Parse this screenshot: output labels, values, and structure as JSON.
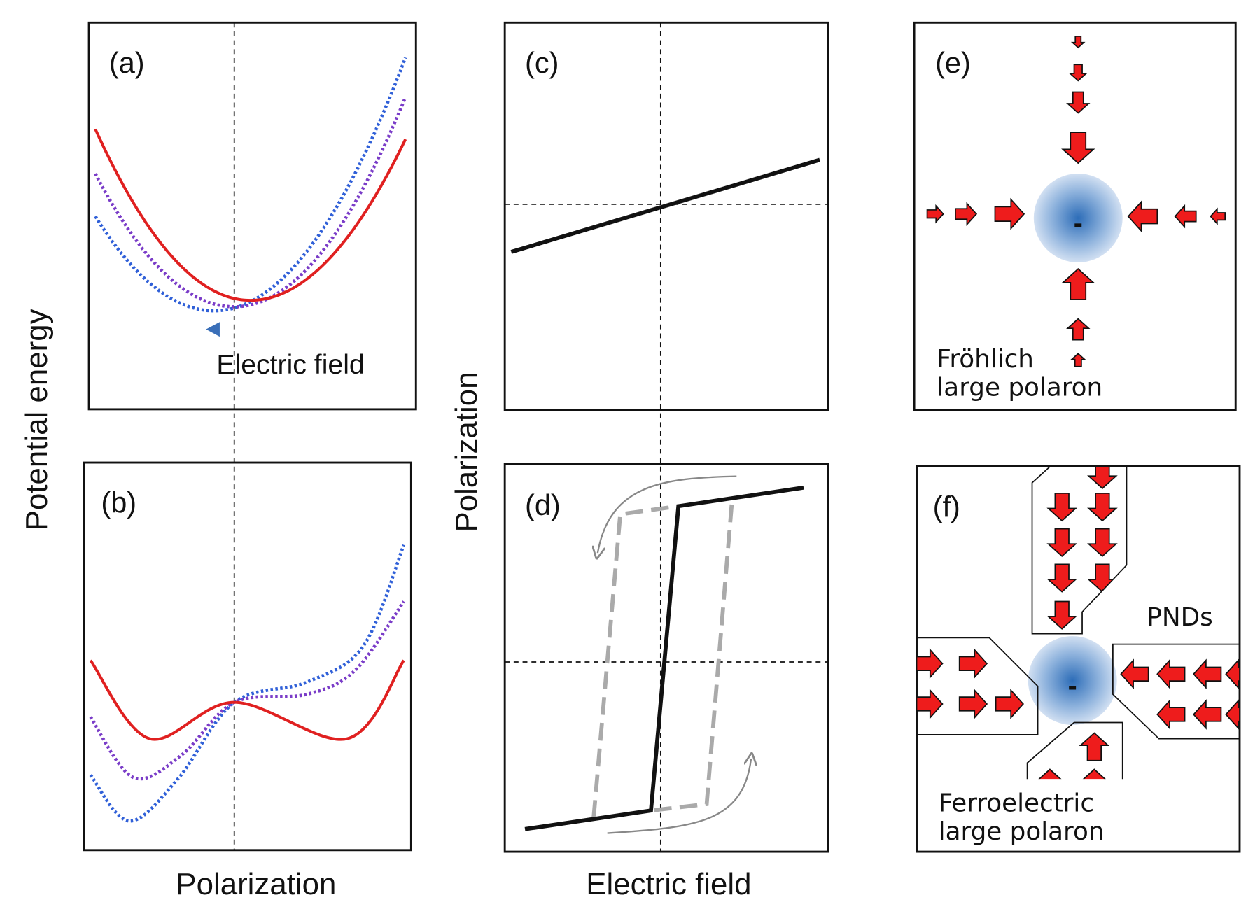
{
  "left_axes": {
    "y_label": "Potential energy",
    "x_label": "Polarization"
  },
  "middle_axes": {
    "y_label": "Polarization",
    "x_label": "Electric field"
  },
  "panels": {
    "a": {
      "label": "(a)",
      "annotation": "Electric field"
    },
    "b": {
      "label": "(b)"
    },
    "c": {
      "label": "(c)"
    },
    "d": {
      "label": "(d)"
    },
    "e": {
      "label": "(e)",
      "caption": [
        "Fröhlich",
        "large polaron"
      ],
      "charge": "-"
    },
    "f": {
      "label": "(f)",
      "caption": [
        "Ferroelectric",
        "large polaron"
      ],
      "region_label": "PNDs",
      "charge": "-"
    }
  }
}
